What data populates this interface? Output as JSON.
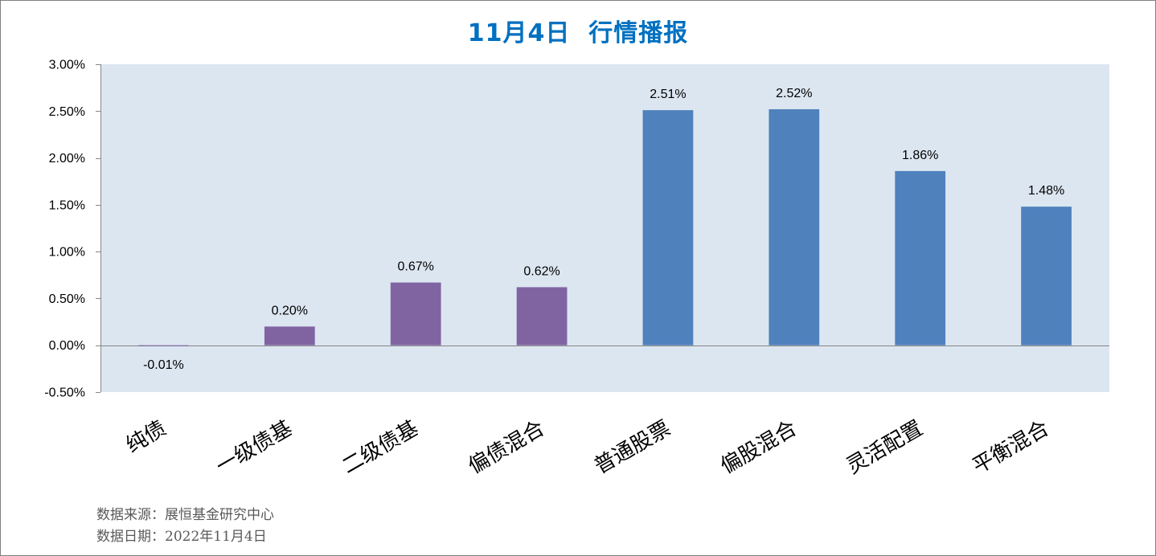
{
  "chart_data": {
    "type": "bar",
    "title": "11月4日  行情播报",
    "xlabel": "",
    "ylabel": "",
    "categories": [
      "纯债",
      "一级债基",
      "二级债基",
      "偏债混合",
      "普通股票",
      "偏股混合",
      "灵活配置",
      "平衡混合"
    ],
    "values": [
      -0.01,
      0.2,
      0.67,
      0.62,
      2.51,
      2.52,
      1.86,
      1.48
    ],
    "data_labels": [
      "-0.01%",
      "0.20%",
      "0.67%",
      "0.62%",
      "2.51%",
      "2.52%",
      "1.86%",
      "1.48%"
    ],
    "bar_colors": [
      "#8064A2",
      "#8064A2",
      "#8064A2",
      "#8064A2",
      "#4F81BD",
      "#4F81BD",
      "#4F81BD",
      "#4F81BD"
    ],
    "ylim": [
      -0.5,
      3.0
    ],
    "yticks": [
      -0.5,
      0,
      0.5,
      1.0,
      1.5,
      2.0,
      2.5,
      3.0
    ],
    "ytick_labels": [
      "-0.50%",
      "0.00%",
      "0.50%",
      "1.00%",
      "1.50%",
      "2.00%",
      "2.50%",
      "3.00%"
    ],
    "grid": false,
    "plot_background": "#DCE6F1",
    "axis_color": "#868686"
  },
  "title_color": "#0070C0",
  "footer": {
    "source": "数据来源：展恒基金研究中心",
    "date": "数据日期：2022年11月4日"
  }
}
